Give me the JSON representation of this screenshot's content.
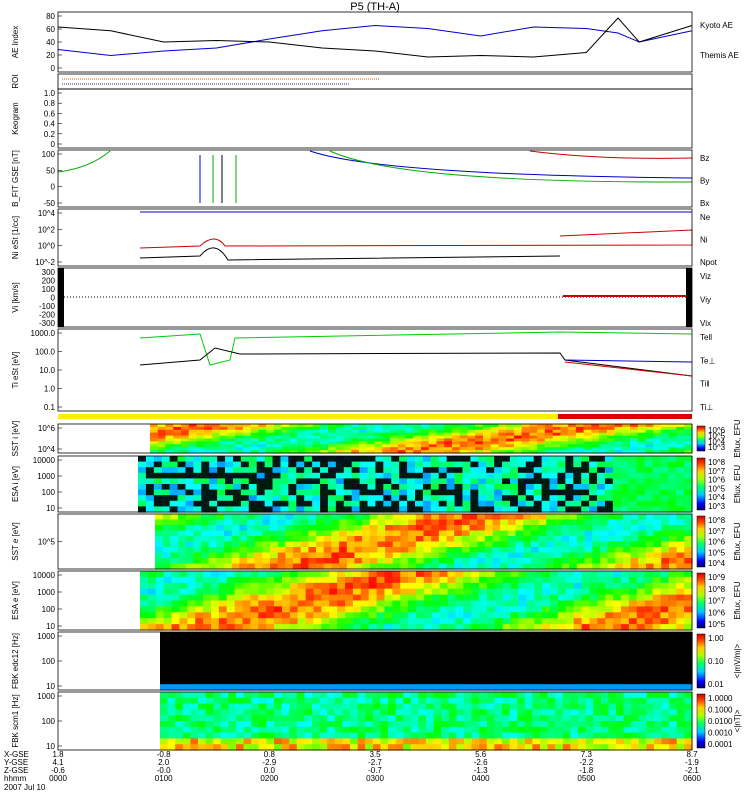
{
  "title": "P5 (TH-A)",
  "date": "2007 Jul 10",
  "chart_data": [
    {
      "type": "line",
      "panel": "ae",
      "ylabel": "AE Index",
      "yticks": [
        "0",
        "20",
        "40",
        "60",
        "80"
      ],
      "ylim": [
        0,
        80
      ],
      "x_hours": [
        0.0,
        0.5,
        1.0,
        1.5,
        2.0,
        2.5,
        3.0,
        3.5,
        4.0,
        4.5,
        5.0,
        5.3,
        5.5,
        6.0
      ],
      "series": [
        {
          "name": "Kyoto AE",
          "color": "#0000cc",
          "values": [
            30,
            22,
            28,
            32,
            44,
            55,
            62,
            58,
            48,
            60,
            58,
            52,
            40,
            55
          ]
        },
        {
          "name": "Themis AE",
          "color": "#000000",
          "values": [
            60,
            55,
            40,
            42,
            40,
            32,
            28,
            20,
            22,
            20,
            26,
            72,
            40,
            62
          ]
        }
      ]
    },
    {
      "type": "line",
      "panel": "roi",
      "ylabel": "ROI"
    },
    {
      "type": "line",
      "panel": "keogram",
      "ylabel": "Keogram",
      "yticks": [
        "0",
        "0.2",
        "0.4",
        "0.6",
        "0.8",
        "1.0"
      ],
      "ylim": [
        0,
        1
      ]
    },
    {
      "type": "line",
      "panel": "bfield",
      "ylabel": "B_FIT GSE [nT]",
      "yticks": [
        "-50",
        "0",
        "50",
        "100"
      ],
      "ylim": [
        -50,
        100
      ],
      "series": [
        {
          "name": "Bz",
          "color": "#cc0000"
        },
        {
          "name": "By",
          "color": "#00aa00"
        },
        {
          "name": "Bx",
          "color": "#0000cc"
        }
      ]
    },
    {
      "type": "line",
      "panel": "density",
      "ylabel": "Ni eSt [1/cc]",
      "yticks": [
        "10^-2",
        "10^0",
        "10^2",
        "10^4"
      ],
      "series": [
        {
          "name": "Ne",
          "color": "#cc0000"
        },
        {
          "name": "Ni",
          "color": "#000000"
        },
        {
          "name": "Npot",
          "color": "#0000cc"
        }
      ]
    },
    {
      "type": "line",
      "panel": "velocity",
      "ylabel": "Vi [km/s]",
      "yticks": [
        "-300",
        "-200",
        "-100",
        "0",
        "100",
        "200",
        "300"
      ],
      "ylim": [
        -300,
        300
      ],
      "series": [
        {
          "name": "Viz",
          "color": "#cc0000"
        },
        {
          "name": "Viy",
          "color": "#00aa00"
        },
        {
          "name": "Vix",
          "color": "#0000cc"
        }
      ]
    },
    {
      "type": "line",
      "panel": "temperature",
      "ylabel": "Ti eSt [eV]",
      "yticks": [
        "0.1",
        "1.0",
        "10.0",
        "100.0",
        "1000.0"
      ],
      "series": [
        {
          "name": "Tell",
          "color": "#000000"
        },
        {
          "name": "Te⊥",
          "color": "#cc0000"
        },
        {
          "name": "Ti‖",
          "color": "#00aa00"
        },
        {
          "name": "Ti⊥",
          "color": "#0000cc"
        }
      ]
    },
    {
      "type": "heatmap",
      "panel": "sst_i",
      "ylabel": "SST i [eV]",
      "yticks": [
        "10^4",
        "10^6"
      ],
      "cbar_label": "Eflux, EFU",
      "cbar_ticks": [
        "10^6",
        "10^5",
        "10^4",
        "10^3"
      ]
    },
    {
      "type": "heatmap",
      "panel": "esa_i",
      "ylabel": "ESA i [eV]",
      "yticks": [
        "10",
        "100",
        "1000",
        "10000"
      ],
      "cbar_label": "Eflux, EFU",
      "cbar_ticks": [
        "10^8",
        "10^7",
        "10^6",
        "10^5",
        "10^4",
        "10^3"
      ]
    },
    {
      "type": "heatmap",
      "panel": "sst_e",
      "ylabel": "SST e [eV]",
      "yticks": [
        "10^5"
      ],
      "cbar_label": "Eflux, EFU",
      "cbar_ticks": [
        "10^8",
        "10^7",
        "10^6",
        "10^5",
        "10^4"
      ]
    },
    {
      "type": "heatmap",
      "panel": "esa_e",
      "ylabel": "ESA e [eV]",
      "yticks": [
        "10",
        "100",
        "1000",
        "10000"
      ],
      "cbar_label": "Eflux, EFU",
      "cbar_ticks": [
        "10^9",
        "10^8",
        "10^7",
        "10^6",
        "10^5"
      ]
    },
    {
      "type": "heatmap",
      "panel": "fbk_e12",
      "ylabel": "FBK edc12 [Hz]",
      "yticks": [
        "10",
        "100",
        "1000"
      ],
      "cbar_label": "<|mV/m|>",
      "cbar_ticks": [
        "1.00",
        "0.10",
        "0.01"
      ]
    },
    {
      "type": "heatmap",
      "panel": "fbk_scm1",
      "ylabel": "FBK scm1 [Hz]",
      "yticks": [
        "10",
        "100",
        "1000"
      ],
      "cbar_label": "<|nT|>",
      "cbar_ticks": [
        "1.0000",
        "0.1000",
        "0.0100",
        "0.0010",
        "0.0001"
      ]
    }
  ],
  "xaxis": {
    "row_labels": [
      "X-GSE",
      "Y-GSE",
      "Z-GSE",
      "hhmm"
    ],
    "ticks": [
      {
        "x": "1.8",
        "y": "4.1",
        "z": "-0.6",
        "hhmm": "0000"
      },
      {
        "x": "-0.8",
        "y": "2.0",
        "z": "-0.0",
        "hhmm": "0100"
      },
      {
        "x": "0.8",
        "y": "-2.9",
        "z": "0.0",
        "hhmm": "0200"
      },
      {
        "x": "3.5",
        "y": "-2.7",
        "z": "-0.7",
        "hhmm": "0300"
      },
      {
        "x": "5.6",
        "y": "-2.6",
        "z": "-1.3",
        "hhmm": "0400"
      },
      {
        "x": "7.3",
        "y": "-2.2",
        "z": "-1.8",
        "hhmm": "0500"
      },
      {
        "x": "8.7",
        "y": "-1.9",
        "z": "-2.1",
        "hhmm": "0600"
      }
    ]
  }
}
